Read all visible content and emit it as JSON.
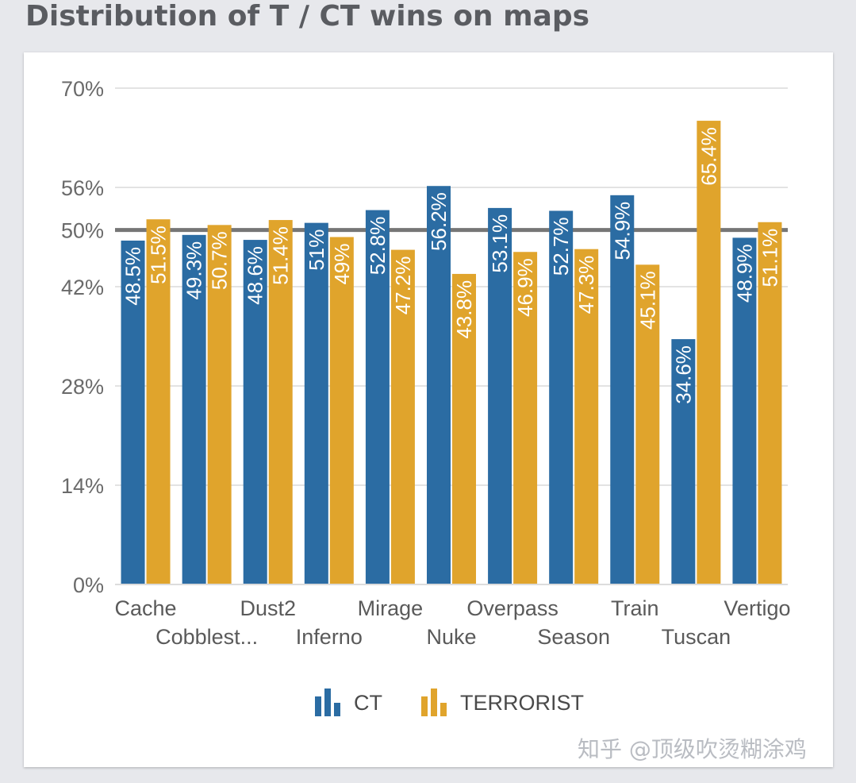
{
  "title": "Distribution of T / CT wins on maps",
  "watermark": "知乎 @顶级吹烫糊涂鸡",
  "chart_data": {
    "type": "bar",
    "categories": [
      "Cache",
      "Cobblest...",
      "Dust2",
      "Inferno",
      "Mirage",
      "Nuke",
      "Overpass",
      "Season",
      "Train",
      "Tuscan",
      "Vertigo"
    ],
    "series": [
      {
        "name": "CT",
        "color": "#2b6ca3",
        "values": [
          48.5,
          49.3,
          48.6,
          51,
          52.8,
          56.2,
          53.1,
          52.7,
          54.9,
          34.6,
          48.9
        ]
      },
      {
        "name": "TERRORIST",
        "color": "#e0a42c",
        "values": [
          51.5,
          50.7,
          51.4,
          49,
          47.2,
          43.8,
          46.9,
          47.3,
          45.1,
          65.4,
          51.1
        ]
      }
    ],
    "data_labels": {
      "CT": [
        "48.5%",
        "49.3%",
        "48.6%",
        "51%",
        "52.8%",
        "56.2%",
        "53.1%",
        "52.7%",
        "54.9%",
        "34.6%",
        "48.9%"
      ],
      "TERRORIST": [
        "51.5%",
        "50.7%",
        "51.4%",
        "49%",
        "47.2%",
        "43.8%",
        "46.9%",
        "47.3%",
        "45.1%",
        "65.4%",
        "51.1%"
      ]
    },
    "yticks": [
      0,
      14,
      28,
      42,
      50,
      56,
      70
    ],
    "ytick_labels": [
      "0%",
      "14%",
      "28%",
      "42%",
      "50%",
      "56%",
      "70%"
    ],
    "ylim": [
      0,
      70
    ],
    "reference_line": 50,
    "legend": {
      "position": "bottom",
      "items": [
        "CT",
        "TERRORIST"
      ]
    },
    "grid": true
  }
}
